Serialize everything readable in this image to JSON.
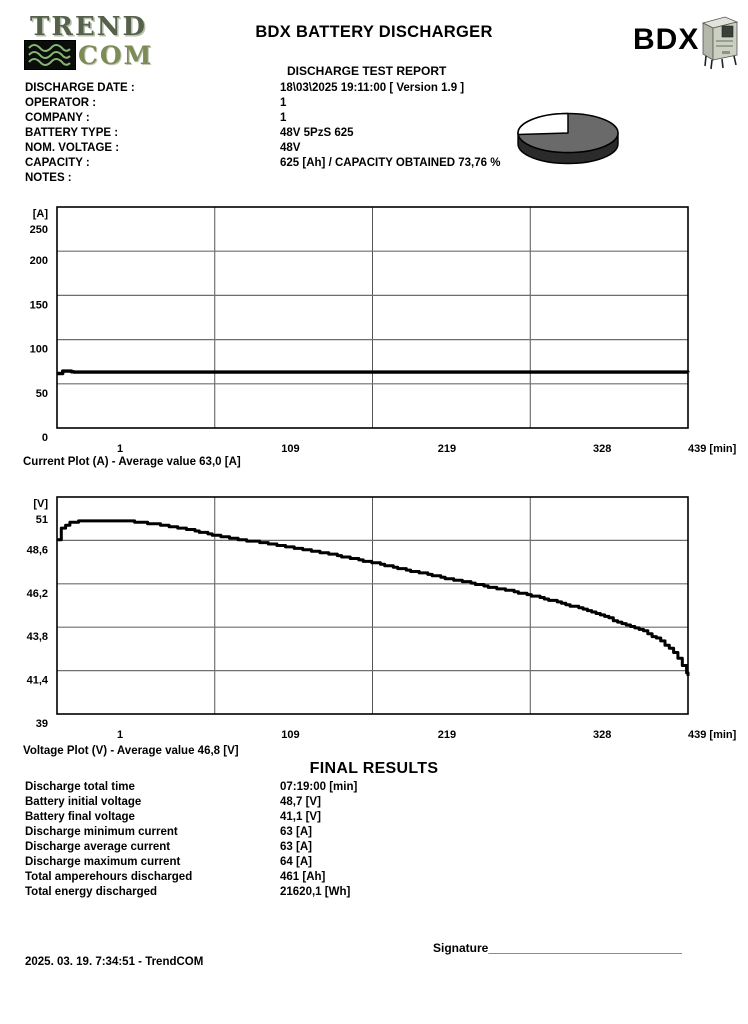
{
  "report": {
    "logo_trend": "TREND",
    "logo_com": "COM",
    "title": "BDX BATTERY DISCHARGER",
    "brand": "BDX",
    "subtitle": "DISCHARGE TEST REPORT",
    "info_rows": [
      {
        "label": "DISCHARGE DATE :",
        "value": "18\\03\\2025 19:11:00 [ Version 1.9 ]"
      },
      {
        "label": "OPERATOR :",
        "value": "1"
      },
      {
        "label": "COMPANY :",
        "value": "1"
      },
      {
        "label": "BATTERY TYPE :",
        "value": "48V 5PzS 625"
      },
      {
        "label": "NOM. VOLTAGE :",
        "value": "48V"
      },
      {
        "label": "CAPACITY :",
        "value": "625 [Ah] / CAPACITY OBTAINED 73,76 %"
      },
      {
        "label": "NOTES :",
        "value": ""
      }
    ],
    "pie": {
      "percent": 73.76,
      "top_color": "#6a6a6a",
      "side_color": "#2b2b2b",
      "slice_color": "#ffffff"
    },
    "final_results_title": "FINAL RESULTS",
    "final_results": [
      {
        "label": "Discharge total time",
        "value": "07:19:00 [min]"
      },
      {
        "label": "Battery initial voltage",
        "value": "48,7 [V]"
      },
      {
        "label": "Battery final voltage",
        "value": "41,1 [V]"
      },
      {
        "label": "Discharge minimum current",
        "value": "63 [A]"
      },
      {
        "label": "Discharge average current",
        "value": "63 [A]"
      },
      {
        "label": "Discharge maximum current",
        "value": "64 [A]"
      },
      {
        "label": "Total amperehours discharged",
        "value": "461 [Ah]"
      },
      {
        "label": "Total energy discharged",
        "value": "21620,1 [Wh]"
      }
    ],
    "signature_line": "Signature_____________________________",
    "footer_timestamp": "2025. 03. 19. 7:34:51 - TrendCOM"
  },
  "chart_data": [
    {
      "type": "line",
      "title": "Current Plot (A) - Average value 63,0 [A]",
      "ylabel": "[A]",
      "xlabel": "[min]",
      "ylim": [
        0,
        250
      ],
      "xlim": [
        0,
        439
      ],
      "grid": true,
      "y_ticks": [
        {
          "label": "250",
          "value": 250
        },
        {
          "label": "200",
          "value": 200
        },
        {
          "label": "150",
          "value": 150
        },
        {
          "label": "100",
          "value": 100
        },
        {
          "label": "50",
          "value": 50
        },
        {
          "label": "0",
          "value": 0
        }
      ],
      "x_interval_labels": [
        "1",
        "109",
        "219",
        "328"
      ],
      "x_end_label": "439 [min]",
      "average_value": "63,0 [A]",
      "series": [
        {
          "name": "current_A",
          "points": [
            [
              0,
              61.5
            ],
            [
              3,
              61.5
            ],
            [
              4,
              64.5
            ],
            [
              9,
              64.3
            ],
            [
              11,
              63
            ],
            [
              439,
              63
            ]
          ]
        }
      ]
    },
    {
      "type": "line",
      "title": "Voltage Plot (V) - Average value 46,8 [V]",
      "ylabel": "[V]",
      "xlabel": "[min]",
      "ylim": [
        39,
        51
      ],
      "xlim": [
        0,
        439
      ],
      "grid": true,
      "y_ticks": [
        {
          "label": "51",
          "value": 51
        },
        {
          "label": "48,6",
          "value": 48.6
        },
        {
          "label": "46,2",
          "value": 46.2
        },
        {
          "label": "43,8",
          "value": 43.8
        },
        {
          "label": "41,4",
          "value": 41.4
        },
        {
          "label": "39",
          "value": 39
        }
      ],
      "x_interval_labels": [
        "1",
        "109",
        "219",
        "328"
      ],
      "x_end_label": "439 [min]",
      "average_value": "46,8 [V]",
      "series": [
        {
          "name": "voltage_V",
          "points": [
            [
              0,
              48.65
            ],
            [
              2,
              49.15
            ],
            [
              4,
              49.4
            ],
            [
              8,
              49.55
            ],
            [
              14,
              49.65
            ],
            [
              22,
              49.7
            ],
            [
              32,
              49.72
            ],
            [
              45,
              49.68
            ],
            [
              58,
              49.6
            ],
            [
              72,
              49.45
            ],
            [
              85,
              49.3
            ],
            [
              100,
              49.05
            ],
            [
              109,
              48.9
            ],
            [
              122,
              48.72
            ],
            [
              138,
              48.52
            ],
            [
              155,
              48.3
            ],
            [
              172,
              48.08
            ],
            [
              190,
              47.85
            ],
            [
              205,
              47.6
            ],
            [
              219,
              47.38
            ],
            [
              235,
              47.1
            ],
            [
              252,
              46.82
            ],
            [
              268,
              46.55
            ],
            [
              285,
              46.28
            ],
            [
              302,
              46.0
            ],
            [
              315,
              45.8
            ],
            [
              328,
              45.6
            ],
            [
              342,
              45.3
            ],
            [
              355,
              45.05
            ],
            [
              368,
              44.72
            ],
            [
              380,
              44.4
            ],
            [
              390,
              44.1
            ],
            [
              398,
              43.88
            ],
            [
              405,
              43.68
            ],
            [
              411,
              43.45
            ],
            [
              417,
              43.18
            ],
            [
              422,
              42.9
            ],
            [
              427,
              42.55
            ],
            [
              431,
              42.2
            ],
            [
              434,
              41.85
            ],
            [
              437,
              41.45
            ],
            [
              439,
              41.1
            ]
          ]
        }
      ]
    }
  ]
}
